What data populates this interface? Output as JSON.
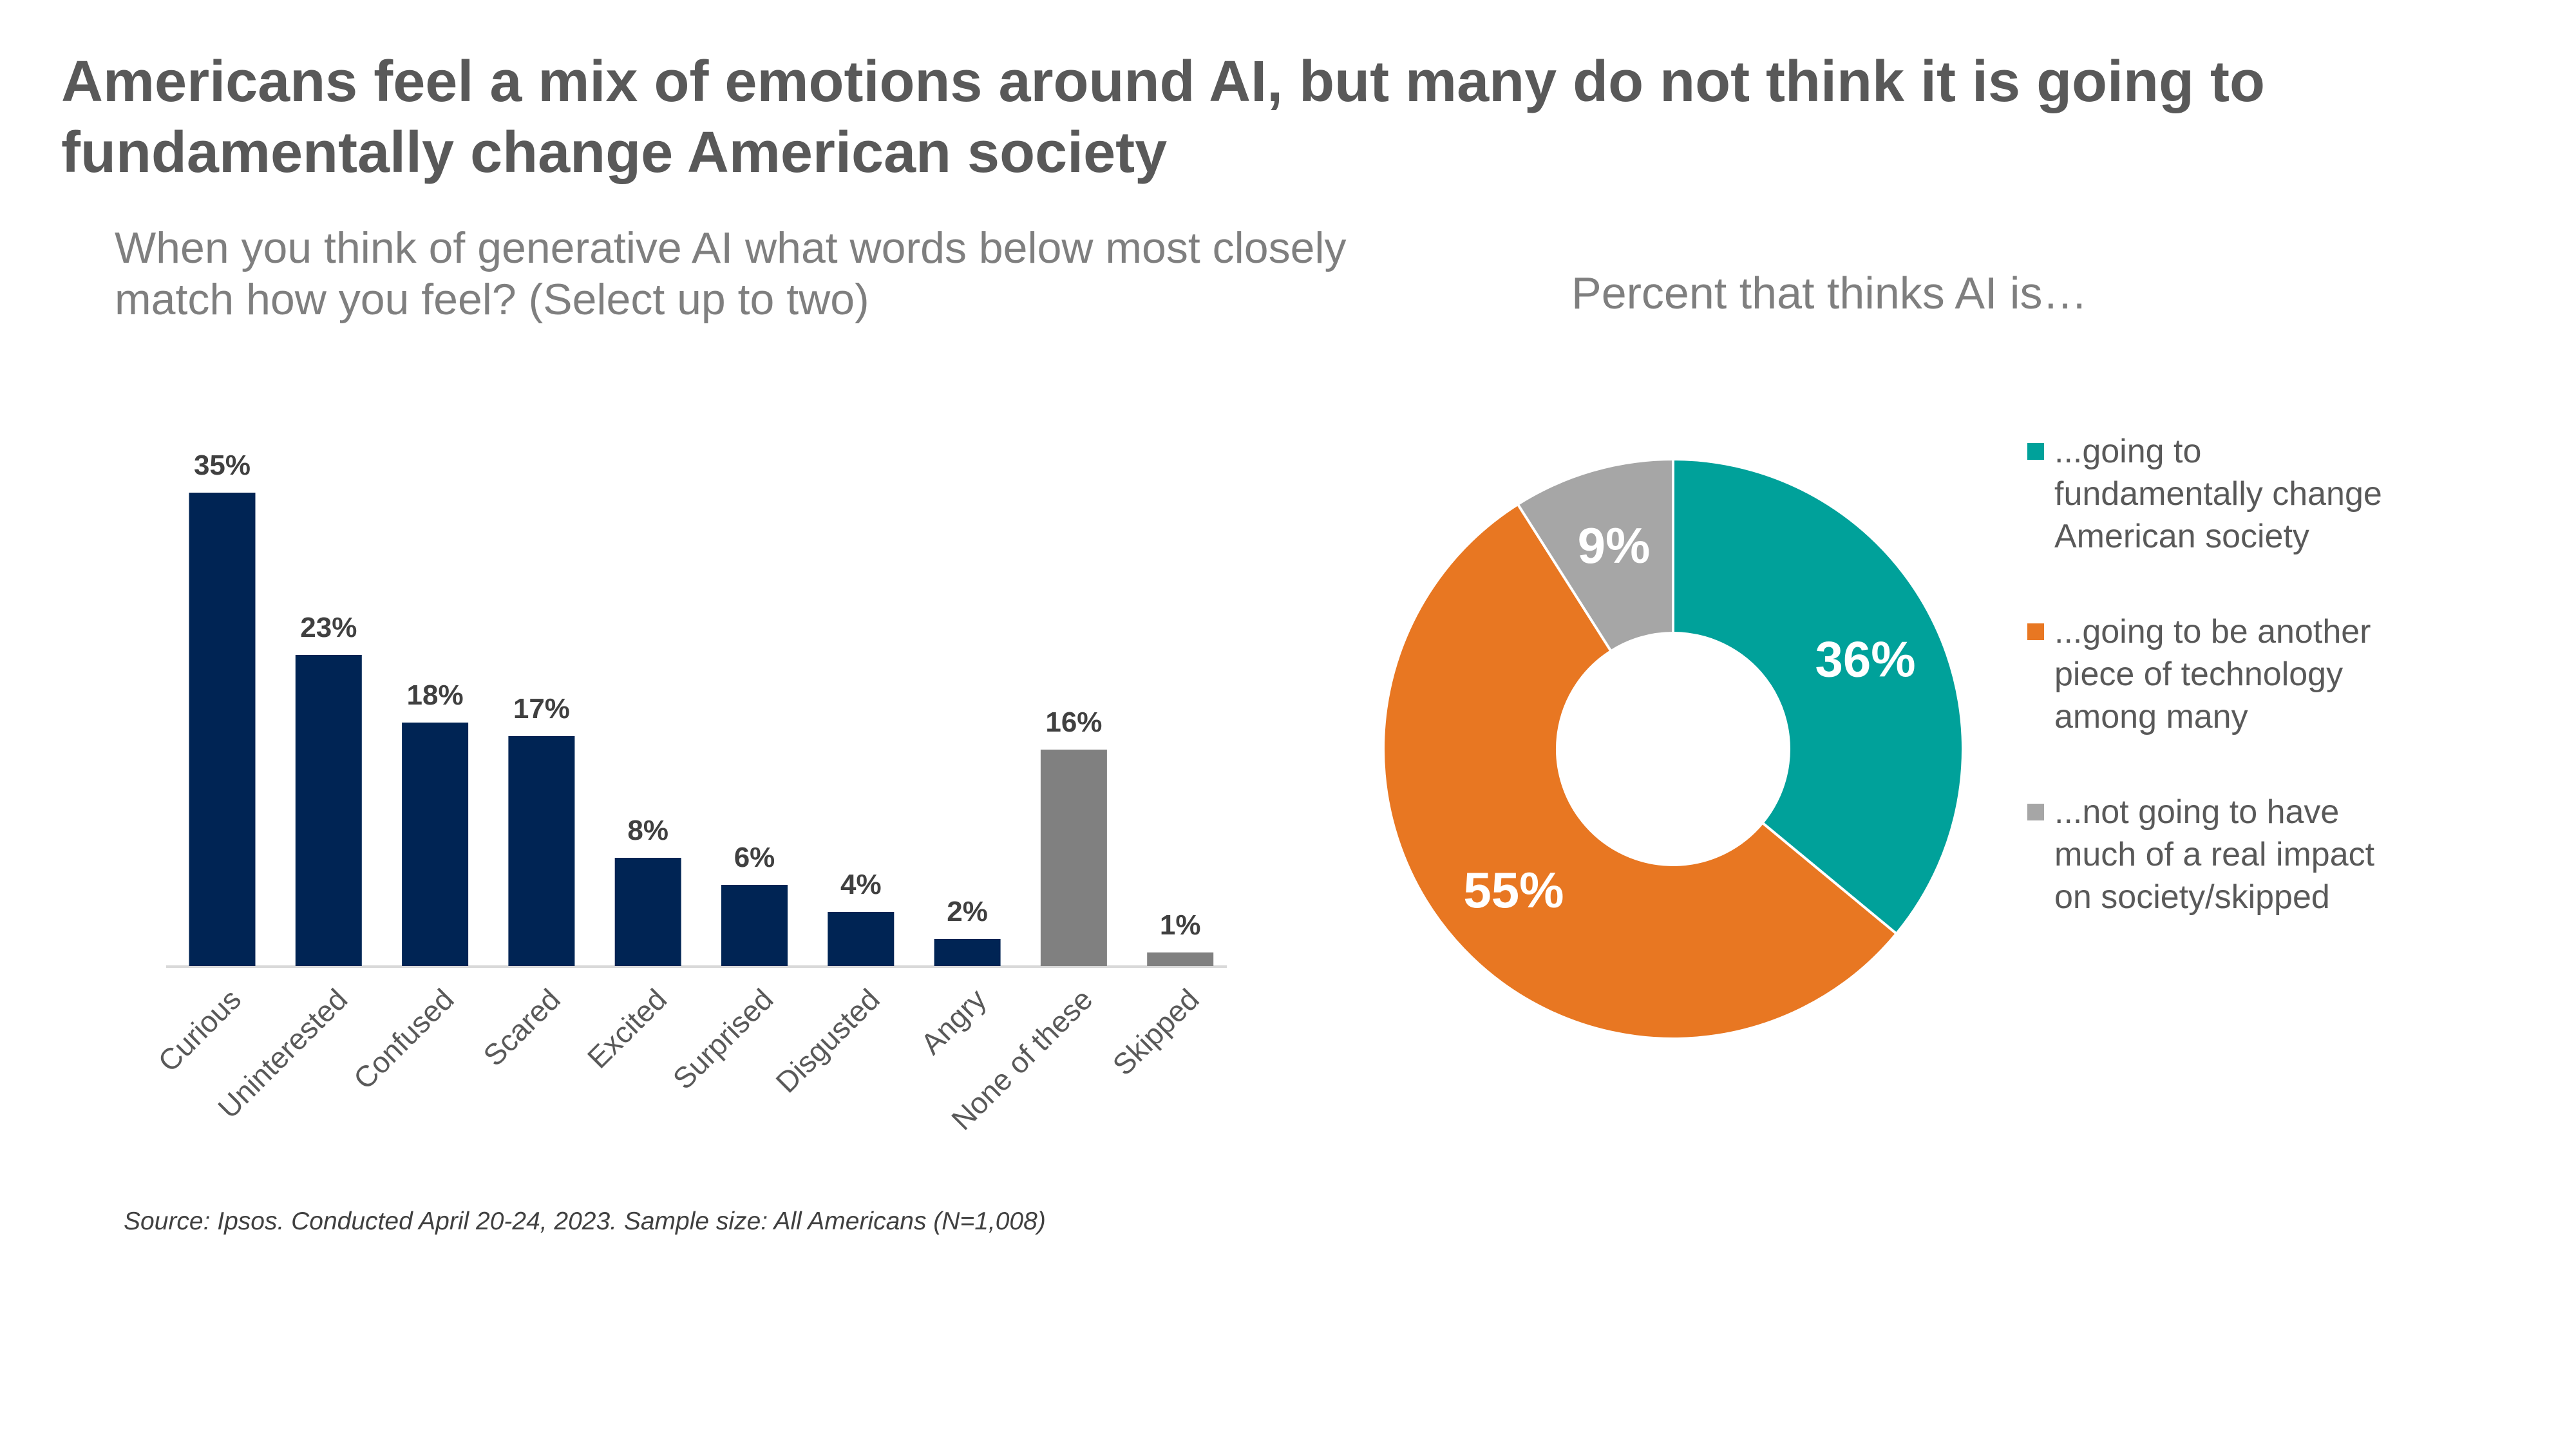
{
  "title": "Americans feel a mix of emotions around AI, but many do not think it is going to fundamentally change American society",
  "source": "Source: Ipsos. Conducted April 20-24, 2023. Sample size: All Americans (N=1,008)",
  "chart_data": [
    {
      "type": "bar",
      "title": "When you think of generative AI what words below most closely match how you feel? (Select up to two)",
      "categories": [
        "Curious",
        "Uninterested",
        "Confused",
        "Scared",
        "Excited",
        "Surprised",
        "Disgusted",
        "Angry",
        "None of these",
        "Skipped"
      ],
      "values": [
        35,
        23,
        18,
        17,
        8,
        6,
        4,
        2,
        16,
        1
      ],
      "data_labels": [
        "35%",
        "23%",
        "18%",
        "17%",
        "8%",
        "6%",
        "4%",
        "2%",
        "16%",
        "1%"
      ],
      "colors": [
        "#002454",
        "#002454",
        "#002454",
        "#002454",
        "#002454",
        "#002454",
        "#002454",
        "#002454",
        "#808080",
        "#808080"
      ],
      "ylim": [
        0,
        35
      ],
      "unit": "%",
      "grid": false
    },
    {
      "type": "pie",
      "subtype": "donut",
      "title": "Percent that thinks AI is…",
      "slices": [
        {
          "label": "...going to fundamentally change American society",
          "value": 36,
          "display": "36%",
          "color": "#00A19A"
        },
        {
          "label": "...going to be another piece of technology among many",
          "value": 55,
          "display": "55%",
          "color": "#E87722"
        },
        {
          "label": "...not going to have much of a real impact on society/skipped",
          "value": 9,
          "display": "9%",
          "color": "#A6A6A6"
        }
      ],
      "legend_position": "right"
    }
  ]
}
